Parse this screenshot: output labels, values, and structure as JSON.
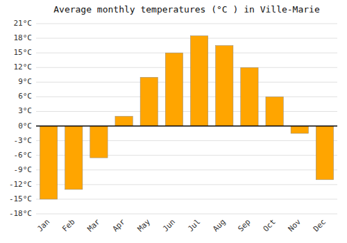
{
  "chart_data": {
    "type": "bar",
    "title": "Average monthly temperatures (°C ) in Ville-Marie",
    "categories": [
      "Jan",
      "Feb",
      "Mar",
      "Apr",
      "May",
      "Jun",
      "Jul",
      "Aug",
      "Sep",
      "Oct",
      "Nov",
      "Dec"
    ],
    "values": [
      -15,
      -13,
      -6.5,
      2,
      10,
      15,
      18.5,
      16.5,
      12,
      6,
      -1.5,
      -11
    ],
    "color": "#FFA500",
    "ylim": [
      -18,
      21
    ],
    "yticks": [
      {
        "value": -18,
        "label": "-18°C"
      },
      {
        "value": -15,
        "label": "-15°C"
      },
      {
        "value": -12,
        "label": "-12°C"
      },
      {
        "value": -9,
        "label": "-9°C"
      },
      {
        "value": -6,
        "label": "-6°C"
      },
      {
        "value": -3,
        "label": "-3°C"
      },
      {
        "value": 0,
        "label": "0°C"
      },
      {
        "value": 3,
        "label": "3°C"
      },
      {
        "value": 6,
        "label": "6°C"
      },
      {
        "value": 9,
        "label": "9°C"
      },
      {
        "value": 12,
        "label": "12°C"
      },
      {
        "value": 15,
        "label": "15°C"
      },
      {
        "value": 18,
        "label": "18°C"
      },
      {
        "value": 21,
        "label": "21°C"
      }
    ],
    "grid": true
  }
}
